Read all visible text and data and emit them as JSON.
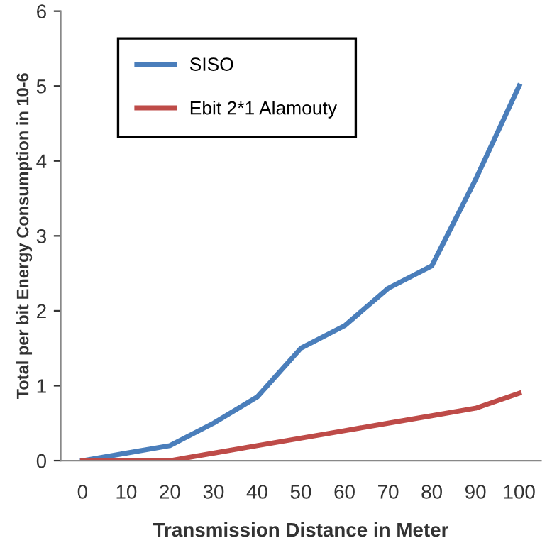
{
  "chart_data": {
    "type": "line",
    "xlabel": "Transmission Distance in Meter",
    "ylabel": "Total per bit Energy Consumption in 10-6",
    "categories": [
      "0",
      "10",
      "20",
      "30",
      "40",
      "50",
      "60",
      "70",
      "80",
      "90",
      "100"
    ],
    "series": [
      {
        "name": "SISO",
        "color": "#4a7ebb",
        "values": [
          0,
          0.1,
          0.2,
          0.5,
          0.85,
          1.5,
          1.8,
          2.3,
          2.6,
          3.75,
          5.0
        ]
      },
      {
        "name": "Ebit 2*1 Alamouty",
        "color": "#be4b48",
        "values": [
          0,
          0,
          0,
          0.1,
          0.2,
          0.3,
          0.4,
          0.5,
          0.6,
          0.7,
          0.9
        ]
      }
    ],
    "ylim": [
      0,
      6
    ],
    "yticks": [
      0,
      1,
      2,
      3,
      4,
      5,
      6
    ],
    "grid": false,
    "legend": "top left",
    "marker": "none",
    "line_style": "solid"
  }
}
